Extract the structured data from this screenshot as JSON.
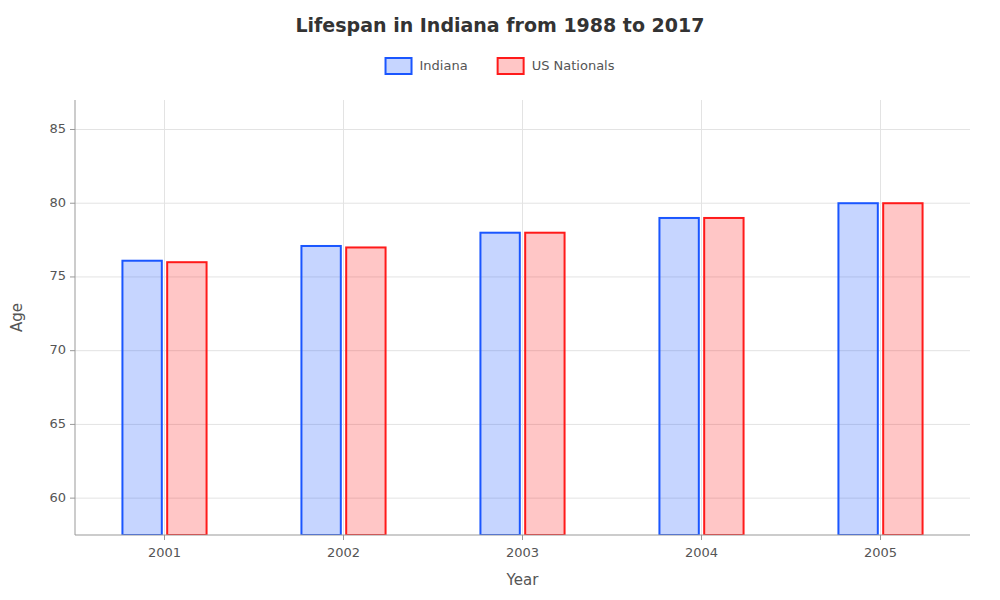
{
  "chart_data": {
    "type": "bar",
    "title": "Lifespan in Indiana from 1988 to 2017",
    "xlabel": "Year",
    "ylabel": "Age",
    "categories": [
      "2001",
      "2002",
      "2003",
      "2004",
      "2005"
    ],
    "series": [
      {
        "name": "Indiana",
        "color": "#1a56ff",
        "values": [
          76.1,
          77.1,
          78.0,
          79.0,
          80.0
        ]
      },
      {
        "name": "US Nationals",
        "color": "#ff1a1a",
        "values": [
          76.0,
          77.0,
          78.0,
          79.0,
          80.0
        ]
      }
    ],
    "ylim": [
      57.5,
      87
    ],
    "yticks": [
      60,
      65,
      70,
      75,
      80,
      85
    ],
    "grid": true,
    "legend": "top"
  }
}
